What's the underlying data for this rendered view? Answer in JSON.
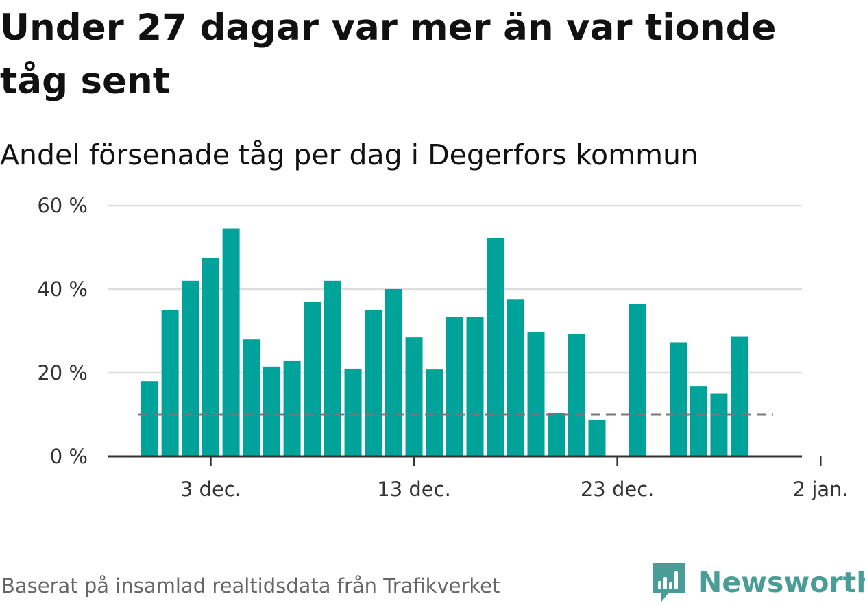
{
  "title": "Under 27 dagar var mer än var tionde tåg sent",
  "subtitle": "Andel försenade tåg per dag i Degerfors kommun",
  "source": "Baserat på insamlad realtidsdata från Trafikverket",
  "brand": {
    "name": "Newsworthy",
    "icon": "newsworthy-logo-icon",
    "color": "#4a9d97"
  },
  "colors": {
    "bar": "#00a39a",
    "grid": "#dddddd",
    "axis": "#333333",
    "reference": "#777777"
  },
  "chart_data": {
    "type": "bar",
    "title": "Andel försenade tåg per dag i Degerfors kommun",
    "x_start": "2023-11-29",
    "x": [
      "29 nov.",
      "30 nov.",
      "1 dec.",
      "2 dec.",
      "3 dec.",
      "4 dec.",
      "5 dec.",
      "6 dec.",
      "7 dec.",
      "8 dec.",
      "9 dec.",
      "10 dec.",
      "11 dec.",
      "12 dec.",
      "13 dec.",
      "14 dec.",
      "15 dec.",
      "16 dec.",
      "17 dec.",
      "18 dec.",
      "19 dec.",
      "20 dec.",
      "21 dec.",
      "22 dec.",
      "23 dec.",
      "24 dec.",
      "25 dec.",
      "26 dec.",
      "27 dec.",
      "28 dec.",
      "29 dec.",
      "30 dec.",
      "31 dec.",
      "1 jan.",
      "2 jan."
    ],
    "values": [
      null,
      18,
      35,
      42,
      47.5,
      54.5,
      28,
      21.5,
      22.8,
      37,
      42,
      21,
      35,
      40,
      28.5,
      20.8,
      33.3,
      33.3,
      52.3,
      37.5,
      29.7,
      10.5,
      29.2,
      8.7,
      null,
      36.4,
      null,
      27.3,
      16.7,
      15,
      28.6,
      null,
      null,
      null,
      null
    ],
    "reference_value": 10,
    "ylim": [
      0,
      60
    ],
    "yticks": [
      0,
      20,
      40,
      60
    ],
    "ytick_labels": [
      "0 %",
      "20 %",
      "40 %",
      "60 %"
    ],
    "xtick_labels": [
      "3 dec.",
      "13 dec.",
      "23 dec.",
      "2 jan."
    ],
    "xtick_indices": [
      4,
      14,
      24,
      34
    ],
    "grid": true
  }
}
